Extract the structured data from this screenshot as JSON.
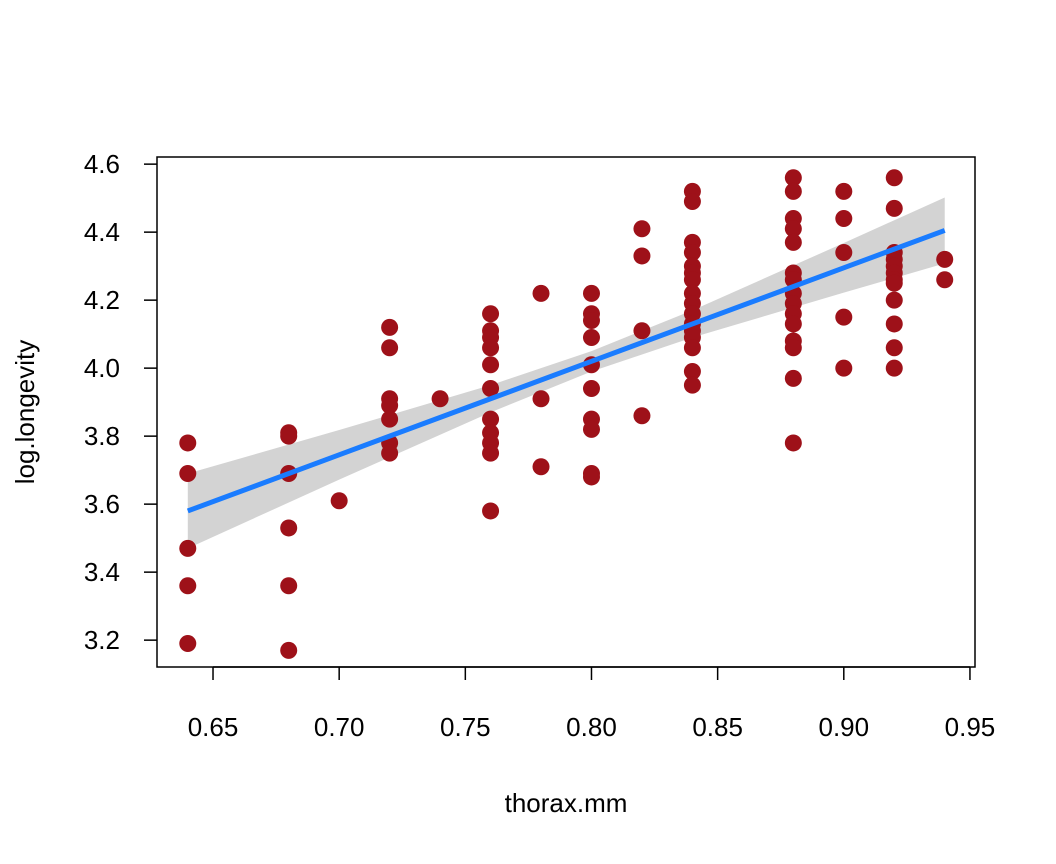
{
  "chart_data": {
    "type": "scatter",
    "xlabel": "thorax.mm",
    "ylabel": "log.longevity",
    "xlim": [
      0.6278,
      0.952
    ],
    "ylim": [
      3.121,
      4.621
    ],
    "xticks": [
      0.65,
      {
        "value": 0.7,
        "label": "0.70"
      },
      0.75,
      {
        "value": 0.8,
        "label": "0.80"
      },
      0.85,
      {
        "value": 0.9,
        "label": "0.90"
      },
      0.95
    ],
    "yticks": [
      3.2,
      3.4,
      3.6,
      3.8,
      {
        "value": 4,
        "label": "4.0"
      },
      4.2,
      4.4,
      4.6
    ],
    "series": [
      {
        "type": "band",
        "color": "#d3d3d3",
        "x": [
          0.64,
          0.7,
          0.76,
          0.8,
          0.84,
          0.9,
          0.94
        ],
        "lower": [
          3.47,
          3.672,
          3.87,
          3.99,
          4.09,
          4.222,
          4.308
        ],
        "upper": [
          3.69,
          3.818,
          3.95,
          4.05,
          4.17,
          4.368,
          4.502
        ]
      },
      {
        "type": "scatter",
        "color": "#9e1119",
        "x": [
          0.64,
          0.64,
          0.64,
          0.64,
          0.64,
          0.68,
          0.68,
          0.68,
          0.68,
          0.68,
          0.68,
          0.7,
          0.72,
          0.72,
          0.72,
          0.72,
          0.72,
          0.72,
          0.72,
          0.74,
          0.76,
          0.76,
          0.76,
          0.76,
          0.76,
          0.76,
          0.76,
          0.76,
          0.76,
          0.76,
          0.76,
          0.78,
          0.78,
          0.78,
          0.8,
          0.8,
          0.8,
          0.8,
          0.8,
          0.8,
          0.8,
          0.8,
          0.8,
          0.8,
          0.82,
          0.82,
          0.82,
          0.82,
          0.84,
          0.84,
          0.84,
          0.84,
          0.84,
          0.84,
          0.84,
          0.84,
          0.84,
          0.84,
          0.84,
          0.84,
          0.84,
          0.84,
          0.84,
          0.84,
          0.88,
          0.88,
          0.88,
          0.88,
          0.88,
          0.88,
          0.88,
          0.88,
          0.88,
          0.88,
          0.88,
          0.88,
          0.88,
          0.88,
          0.88,
          0.9,
          0.9,
          0.9,
          0.9,
          0.9,
          0.92,
          0.92,
          0.92,
          0.92,
          0.92,
          0.92,
          0.92,
          0.92,
          0.92,
          0.92,
          0.92,
          0.92,
          0.94,
          0.94
        ],
        "values": [
          3.78,
          3.69,
          3.47,
          3.36,
          3.19,
          3.81,
          3.8,
          3.69,
          3.53,
          3.36,
          3.17,
          3.61,
          4.12,
          4.06,
          3.91,
          3.89,
          3.85,
          3.78,
          3.75,
          3.91,
          4.16,
          4.11,
          4.09,
          4.06,
          4.01,
          3.94,
          3.85,
          3.81,
          3.78,
          3.75,
          3.58,
          4.22,
          3.91,
          3.71,
          4.22,
          4.16,
          4.14,
          4.09,
          4.01,
          3.94,
          3.85,
          3.82,
          3.69,
          3.68,
          4.41,
          4.33,
          4.11,
          3.86,
          4.52,
          4.49,
          4.37,
          4.34,
          4.3,
          4.28,
          4.26,
          4.22,
          4.19,
          4.16,
          4.13,
          4.11,
          4.09,
          4.06,
          3.99,
          3.95,
          4.56,
          4.52,
          4.44,
          4.41,
          4.37,
          4.28,
          4.26,
          4.22,
          4.19,
          4.16,
          4.13,
          4.08,
          4.06,
          3.97,
          3.78,
          4.52,
          4.44,
          4.34,
          4.15,
          4.0,
          4.56,
          4.47,
          4.34,
          4.32,
          4.3,
          4.28,
          4.26,
          4.25,
          4.2,
          4.13,
          4.06,
          4.0,
          4.32,
          4.26
        ]
      },
      {
        "type": "line",
        "color": "#1a7cff",
        "x": [
          0.64,
          0.7,
          0.76,
          0.8,
          0.84,
          0.9,
          0.94
        ],
        "values": [
          3.58,
          3.745,
          3.91,
          4.02,
          4.13,
          4.295,
          4.405
        ]
      }
    ]
  }
}
